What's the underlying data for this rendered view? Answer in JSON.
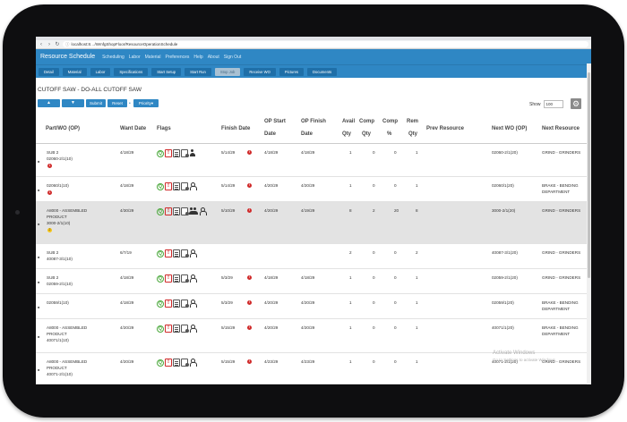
{
  "browser": {
    "url": "localhost:8…/WmfgShopFloor/ResourceOperationSchedule",
    "nav_icons": [
      "back-icon",
      "forward-icon",
      "reload-icon"
    ]
  },
  "app": {
    "brand": "Resource Schedule",
    "nav": [
      "Scheduling",
      "Labor",
      "Material",
      "Preferences",
      "Help",
      "About",
      "Sign Out"
    ],
    "subtabs": [
      "Detail",
      "Material",
      "Labor",
      "Specifications",
      "Start Setup",
      "Start Run",
      "Stop Job",
      "Receive WO",
      "Pictures",
      "Documents"
    ],
    "active_subtab": "Stop Job"
  },
  "page": {
    "title": "CUTOFF SAW - DO-ALL CUTOFF SAW"
  },
  "toolbar": {
    "up": "▲",
    "down": "▼",
    "submit": "Submit",
    "reset": "Reset",
    "priority": "Priority▾",
    "show_label": "Show",
    "show_value": "100"
  },
  "columns": {
    "part": "Part/WO (OP)",
    "want": "Want Date",
    "flags": "Flags",
    "finish": "Finish Date",
    "op_start_1": "OP Start",
    "op_start_2": "Date",
    "op_finish_1": "OP Finish",
    "op_finish_2": "Date",
    "avail_1": "Avail",
    "avail_2": "Qty",
    "comp_1": "Comp",
    "comp_2": "Qty",
    "comppct_1": "Comp",
    "comppct_2": "%",
    "rem_1": "Rem",
    "rem_2": "Qty",
    "prev": "Prev Resource",
    "nextwo": "Next WO (OP)",
    "nextres": "Next Resource"
  },
  "rows": [
    {
      "part_1": "SUB 2",
      "part_2": "02060-2/1(10)",
      "part_3": "",
      "badge": "1",
      "badge_type": "error",
      "want": "4/18/29",
      "finish": "5/14/29",
      "op_start": "4/18/29",
      "op_finish": "4/18/29",
      "avail": "1",
      "comp": "0",
      "comp_pct": "0",
      "rem": "1",
      "prev": "",
      "next_wo": "02060-2/1(20)",
      "next_res_1": "GRIND - GRINDERS",
      "next_res_2": ""
    },
    {
      "part_1": "02060/1(10)",
      "part_2": "",
      "part_3": "",
      "badge": "1",
      "badge_type": "error",
      "want": "4/18/29",
      "finish": "5/14/29",
      "op_start": "4/20/29",
      "op_finish": "4/20/29",
      "avail": "1",
      "comp": "0",
      "comp_pct": "0",
      "rem": "1",
      "prev": "",
      "next_wo": "02060/1(20)",
      "next_res_1": "BRAKE - BENDING",
      "next_res_2": "DEPARTMENT"
    },
    {
      "part_1": "A8000 - ASSEMBLED",
      "part_2": "PRODUCT",
      "part_3": "3000-2/1(10)",
      "badge": "2",
      "badge_type": "warn",
      "want": "4/30/29",
      "finish": "5/10/29",
      "op_start": "4/20/29",
      "op_finish": "4/19/29",
      "avail": "8",
      "comp": "2",
      "comp_pct": "20",
      "rem": "8",
      "prev": "",
      "next_wo": "3000-2/1(20)",
      "next_res_1": "GRIND - GRINDERS",
      "next_res_2": ""
    },
    {
      "part_1": "SUB 2",
      "part_2": "40087-3/1(10)",
      "part_3": "",
      "badge": "",
      "badge_type": "",
      "want": "6/7/19",
      "finish": "",
      "op_start": "",
      "op_finish": "",
      "avail": "2",
      "comp": "0",
      "comp_pct": "0",
      "rem": "2",
      "prev": "",
      "next_wo": "40087-3/1(20)",
      "next_res_1": "GRIND - GRINDERS",
      "next_res_2": ""
    },
    {
      "part_1": "SUB 2",
      "part_2": "02059-2/1(10)",
      "part_3": "",
      "badge": "",
      "badge_type": "",
      "want": "4/18/29",
      "finish": "5/3/29",
      "op_start": "4/18/29",
      "op_finish": "4/18/29",
      "avail": "1",
      "comp": "0",
      "comp_pct": "0",
      "rem": "1",
      "prev": "",
      "next_wo": "02059-2/1(20)",
      "next_res_1": "GRIND - GRINDERS",
      "next_res_2": ""
    },
    {
      "part_1": "02059/1(10)",
      "part_2": "",
      "part_3": "",
      "badge": "",
      "badge_type": "",
      "want": "4/18/29",
      "finish": "5/3/29",
      "op_start": "4/20/29",
      "op_finish": "4/20/29",
      "avail": "1",
      "comp": "0",
      "comp_pct": "0",
      "rem": "1",
      "prev": "",
      "next_wo": "02059/1(20)",
      "next_res_1": "BRAKE - BENDING",
      "next_res_2": "DEPARTMENT"
    },
    {
      "part_1": "A8000 - ASSEMBLED",
      "part_2": "PRODUCT",
      "part_3": "40071/1(10)",
      "badge": "",
      "badge_type": "",
      "want": "4/20/29",
      "finish": "5/15/29",
      "op_start": "4/20/29",
      "op_finish": "4/20/29",
      "avail": "1",
      "comp": "0",
      "comp_pct": "0",
      "rem": "1",
      "prev": "",
      "next_wo": "40071/1(20)",
      "next_res_1": "BRAKE - BENDING",
      "next_res_2": "DEPARTMENT"
    },
    {
      "part_1": "A8000 - ASSEMBLED",
      "part_2": "PRODUCT",
      "part_3": "40071-2/1(10)",
      "badge": "",
      "badge_type": "",
      "want": "4/20/29",
      "finish": "5/15/29",
      "op_start": "4/23/29",
      "op_finish": "4/23/29",
      "avail": "1",
      "comp": "0",
      "comp_pct": "0",
      "rem": "1",
      "prev": "",
      "next_wo": "40071-2/1(20)",
      "next_res_1": "GRIND - GRINDERS",
      "next_res_2": ""
    }
  ],
  "watermark": {
    "line1": "Activate Windows",
    "line2": "Go to Settings to activate Windows."
  }
}
